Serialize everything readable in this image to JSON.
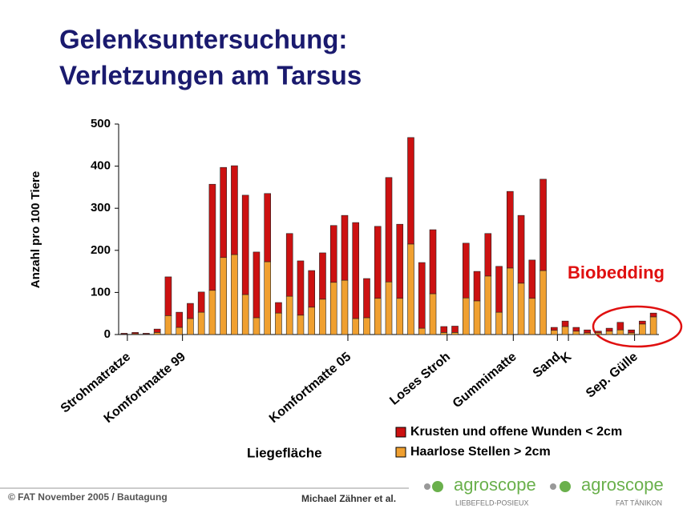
{
  "chart_data": {
    "type": "stacked_bar",
    "title": [
      "Gelenksuntersuchung:",
      "Verletzungen am Tarsus"
    ],
    "ylabel": "Anzahl pro 100 Tiere",
    "xlabel": "Liegefläche",
    "annotation": "Biobedding",
    "categories": [
      "Strohmatratze",
      null,
      null,
      null,
      null,
      "Komfortmatte 99",
      null,
      null,
      null,
      null,
      null,
      null,
      null,
      null,
      null,
      null,
      null,
      null,
      null,
      null,
      "Komfortmatte 05",
      null,
      null,
      null,
      null,
      null,
      null,
      null,
      null,
      "Loses Stroh",
      null,
      null,
      null,
      null,
      null,
      "Gummimatte",
      null,
      null,
      null,
      "Sand",
      "K",
      null,
      null,
      null,
      null,
      null,
      "Sep. Gülle",
      null,
      null
    ],
    "series": [
      {
        "name": "Krusten und offene Wunden < 2cm",
        "color": "#cc1111",
        "values": [
          2,
          3,
          2,
          8,
          92,
          36,
          36,
          48,
          252,
          214,
          211,
          236,
          156,
          162,
          25,
          149,
          129,
          87,
          110,
          135,
          154,
          228,
          93,
          171,
          248,
          176,
          253,
          156,
          152,
          14,
          15,
          130,
          70,
          101,
          109,
          182,
          161,
          91,
          217,
          7,
          13,
          9,
          7,
          4,
          7,
          18,
          7,
          7,
          9
        ]
      },
      {
        "name": "Haarlose Stellen > 2cm",
        "color": "#f0a030",
        "values": [
          1,
          2,
          1,
          5,
          45,
          17,
          38,
          53,
          105,
          183,
          190,
          95,
          40,
          173,
          51,
          91,
          46,
          65,
          84,
          124,
          129,
          38,
          40,
          86,
          125,
          86,
          215,
          15,
          97,
          5,
          5,
          87,
          80,
          139,
          53,
          158,
          122,
          86,
          152,
          10,
          19,
          8,
          4,
          4,
          8,
          11,
          4,
          25,
          42
        ]
      }
    ],
    "ylim": [
      0,
      500
    ],
    "yticks": [
      0,
      100,
      200,
      300,
      400,
      500
    ],
    "grid": false,
    "legend": "lower right"
  },
  "footer": {
    "left": "© FAT November 2005 / Bautagung",
    "center": "Michael Zähner et al.",
    "logos": [
      {
        "name": "agroscope",
        "place": "LIEBEFELD-POSIEUX"
      },
      {
        "name": "agroscope",
        "place": "FAT TÄNIKON"
      }
    ]
  }
}
